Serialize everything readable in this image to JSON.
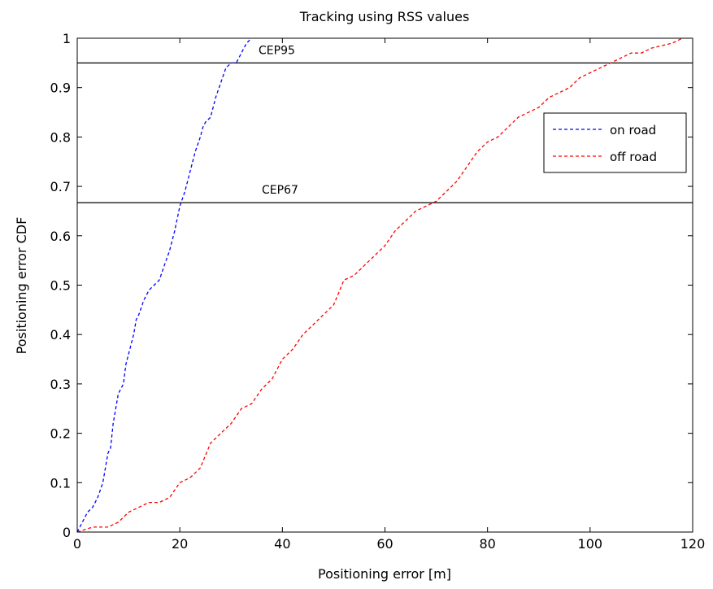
{
  "chart_data": {
    "type": "line",
    "title": "Tracking using RSS values",
    "xlabel": "Positioning error [m]",
    "ylabel": "Positioning error CDF",
    "xlim": [
      0,
      120
    ],
    "ylim": [
      0,
      1
    ],
    "xticks": [
      0,
      20,
      40,
      60,
      80,
      100,
      120
    ],
    "yticks": [
      0,
      0.1,
      0.2,
      0.3,
      0.4,
      0.5,
      0.6,
      0.7,
      0.8,
      0.9,
      1
    ],
    "grid": false,
    "legend": "right",
    "series": [
      {
        "name": "on road",
        "color": "#0000ff",
        "linestyle": "dashed",
        "x": [
          0,
          1,
          2,
          3,
          4,
          5,
          6,
          6.5,
          7,
          8,
          9,
          9.5,
          10,
          11,
          11.5,
          12,
          13,
          14,
          15,
          16,
          17,
          18,
          19,
          20,
          21,
          22,
          23,
          24,
          24.5,
          25,
          26,
          27,
          28,
          29,
          30,
          31,
          32,
          33,
          34
        ],
        "y": [
          0,
          0.02,
          0.04,
          0.05,
          0.07,
          0.1,
          0.16,
          0.17,
          0.22,
          0.28,
          0.3,
          0.34,
          0.36,
          0.4,
          0.43,
          0.44,
          0.47,
          0.49,
          0.5,
          0.51,
          0.54,
          0.57,
          0.61,
          0.66,
          0.69,
          0.73,
          0.77,
          0.8,
          0.82,
          0.83,
          0.84,
          0.88,
          0.91,
          0.94,
          0.95,
          0.95,
          0.97,
          0.99,
          1.0
        ]
      },
      {
        "name": "off road",
        "color": "#ff0000",
        "linestyle": "dashed",
        "x": [
          0,
          3,
          6,
          8,
          10,
          12,
          14,
          16,
          18,
          20,
          22,
          24,
          26,
          28,
          30,
          32,
          34,
          36,
          38,
          40,
          42,
          44,
          46,
          48,
          50,
          52,
          54,
          56,
          58,
          60,
          62,
          64,
          66,
          68,
          70,
          72,
          74,
          76,
          78,
          80,
          82,
          84,
          86,
          88,
          90,
          92,
          94,
          96,
          98,
          100,
          102,
          104,
          106,
          108,
          110,
          112,
          114,
          116,
          118
        ],
        "y": [
          0,
          0.01,
          0.01,
          0.02,
          0.04,
          0.05,
          0.06,
          0.06,
          0.07,
          0.1,
          0.11,
          0.13,
          0.18,
          0.2,
          0.22,
          0.25,
          0.26,
          0.29,
          0.31,
          0.35,
          0.37,
          0.4,
          0.42,
          0.44,
          0.46,
          0.51,
          0.52,
          0.54,
          0.56,
          0.58,
          0.61,
          0.63,
          0.65,
          0.66,
          0.67,
          0.69,
          0.71,
          0.74,
          0.77,
          0.79,
          0.8,
          0.82,
          0.84,
          0.85,
          0.86,
          0.88,
          0.89,
          0.9,
          0.92,
          0.93,
          0.94,
          0.95,
          0.96,
          0.97,
          0.97,
          0.98,
          0.985,
          0.99,
          1.0
        ]
      }
    ],
    "reference_lines": [
      {
        "label": "CEP95",
        "y": 0.95
      },
      {
        "label": "CEP67",
        "y": 0.667
      }
    ]
  }
}
